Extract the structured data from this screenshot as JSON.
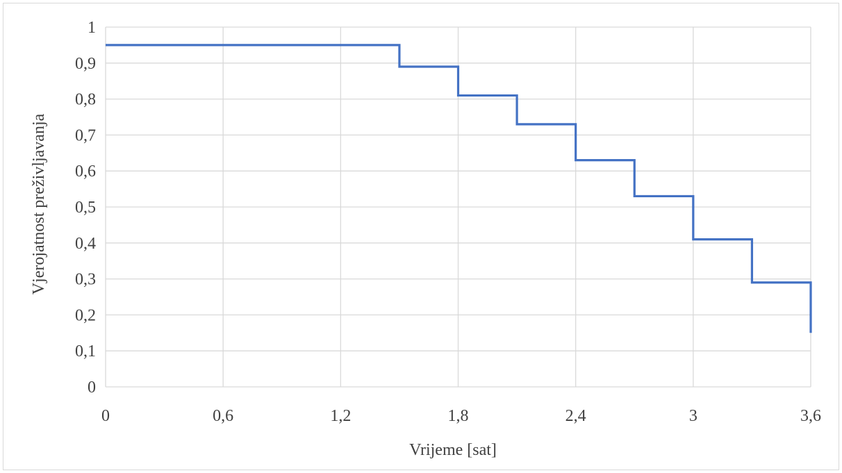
{
  "chart_data": {
    "type": "line",
    "step": true,
    "title": "",
    "xlabel": "Vrijeme [sat]",
    "ylabel": "Vjerojatnost preživljavanja",
    "xlim": [
      0,
      3.6
    ],
    "ylim": [
      0,
      1
    ],
    "x_ticks": [
      "0",
      "0,6",
      "1,2",
      "1,8",
      "2,4",
      "3",
      "3,6"
    ],
    "y_ticks": [
      "0",
      "0,1",
      "0,2",
      "0,3",
      "0,4",
      "0,5",
      "0,6",
      "0,7",
      "0,8",
      "0,9",
      "1"
    ],
    "grid": true,
    "legend": "none",
    "series": [
      {
        "color": "#4472c4",
        "x": [
          0,
          1.5,
          1.8,
          2.1,
          2.4,
          2.7,
          3.0,
          3.3,
          3.6
        ],
        "y": [
          0.95,
          0.89,
          0.81,
          0.73,
          0.63,
          0.53,
          0.41,
          0.29,
          0.15
        ]
      }
    ]
  }
}
